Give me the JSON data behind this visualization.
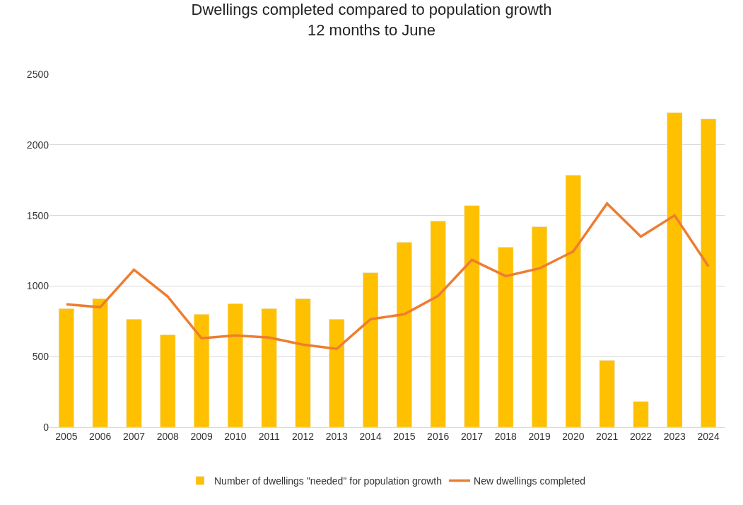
{
  "chart_data": {
    "type": "bar",
    "title": "Dwellings completed compared to population growth\n12 months to June",
    "categories": [
      "2005",
      "2006",
      "2007",
      "2008",
      "2009",
      "2010",
      "2011",
      "2012",
      "2013",
      "2014",
      "2015",
      "2016",
      "2017",
      "2018",
      "2019",
      "2020",
      "2021",
      "2022",
      "2023",
      "2024"
    ],
    "series": [
      {
        "name": "Number of dwellings \"needed\" for population growth",
        "color": "#ffc000",
        "values": [
          840,
          910,
          765,
          655,
          800,
          875,
          840,
          910,
          765,
          1095,
          1310,
          1460,
          1570,
          1275,
          1420,
          1785,
          473,
          182,
          2228,
          2184
        ]
      },
      {
        "name": "New dwellings completed",
        "color": "#ed7d31",
        "type": "line",
        "values": [
          870,
          850,
          1115,
          925,
          630,
          650,
          635,
          585,
          555,
          765,
          800,
          930,
          1185,
          1070,
          1125,
          1245,
          1585,
          1350,
          1500,
          1140
        ]
      }
    ],
    "ylim": [
      0,
      2500
    ],
    "yticks": [
      0,
      500,
      1000,
      1500,
      2000,
      2500
    ],
    "grid": "y",
    "legend": "bottom",
    "marker": "none"
  }
}
